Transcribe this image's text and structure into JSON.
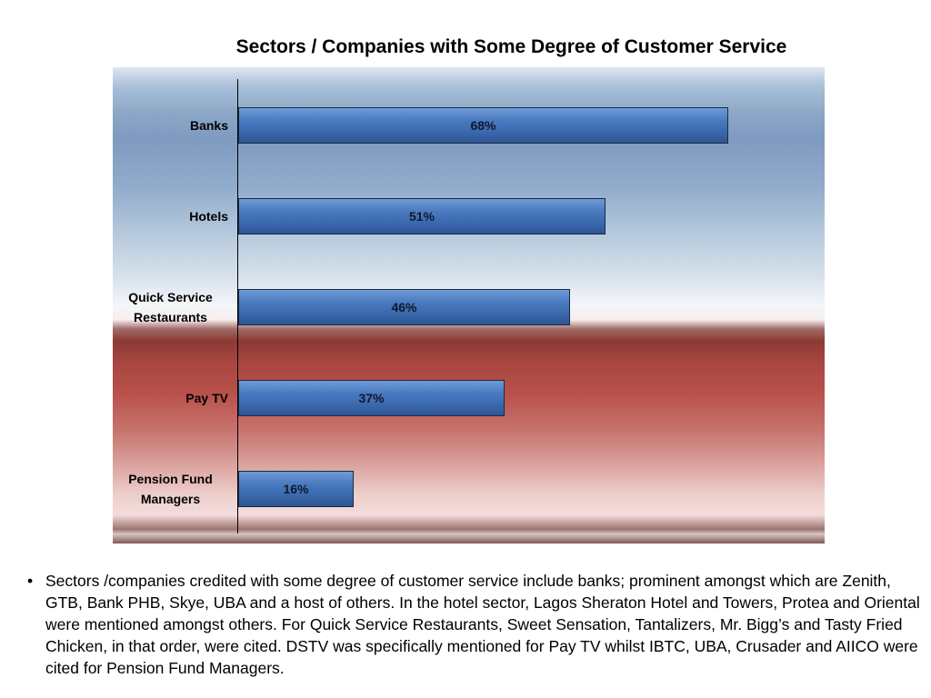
{
  "chart_data": {
    "type": "bar",
    "orientation": "horizontal",
    "title": "Sectors / Companies with Some Degree of Customer Service",
    "categories": [
      "Banks",
      "Hotels",
      "Quick Service Restaurants",
      "Pay TV",
      "Pension Fund Managers"
    ],
    "category_lines": [
      [
        "Banks"
      ],
      [
        "Hotels"
      ],
      [
        "Quick Service",
        "Restaurants"
      ],
      [
        "Pay TV"
      ],
      [
        "Pension Fund",
        "Managers"
      ]
    ],
    "values": [
      68,
      51,
      46,
      37,
      16
    ],
    "data_labels": [
      "68%",
      "51%",
      "46%",
      "37%",
      "16%"
    ],
    "xlim": [
      0,
      100
    ],
    "xlabel": "",
    "ylabel": "",
    "grid": false,
    "bar_color": "#4a7ac0"
  },
  "bullet": {
    "mark": "•",
    "text": "Sectors /companies credited with some degree of customer service include banks; prominent amongst which are Zenith, GTB, Bank PHB, Skye, UBA and a host of others. In the hotel sector, Lagos Sheraton Hotel and Towers, Protea and Oriental were mentioned amongst others. For Quick Service Restaurants, Sweet Sensation, Tantalizers, Mr. Bigg’s and Tasty Fried Chicken, in that order, were cited. DSTV was specifically mentioned for Pay TV whilst IBTC, UBA, Crusader and AIICO were cited for Pension Fund Managers."
  }
}
